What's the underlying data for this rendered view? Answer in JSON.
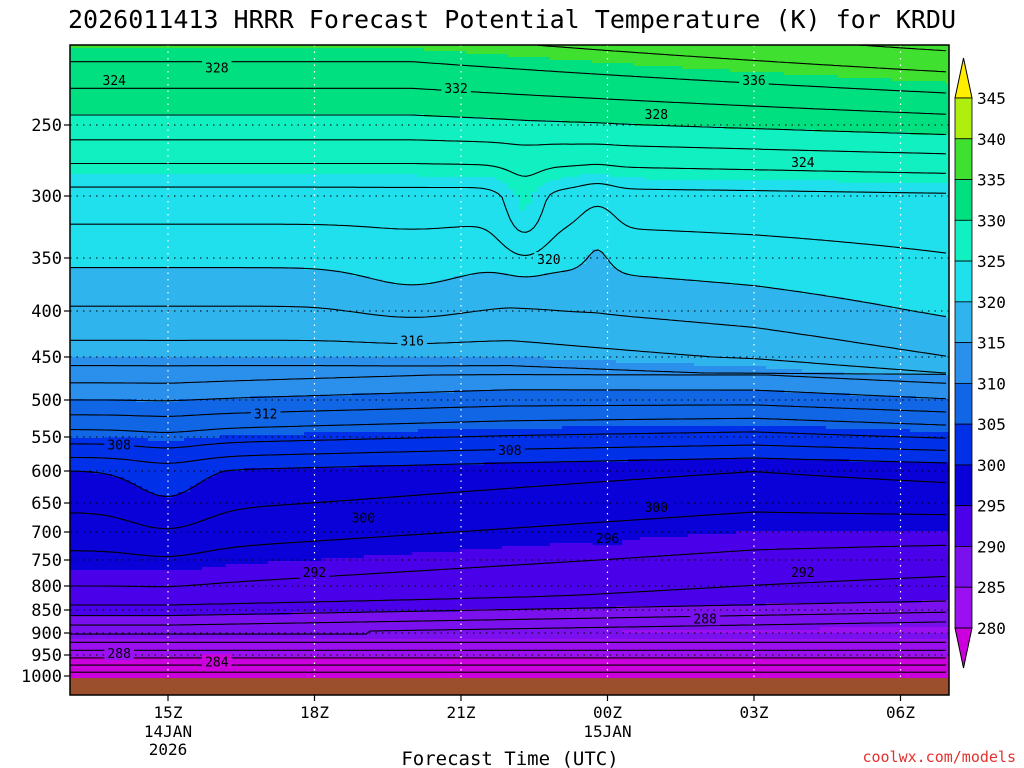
{
  "title": "2026011413 HRRR Forecast Potential Temperature (K) for KRDU",
  "credit": "coolwx.com/models",
  "chart_data": {
    "type": "contour",
    "title": "2026011413 HRRR Forecast Potential Temperature (K) for KRDU",
    "xlabel": "Forecast Time (UTC)",
    "ylabel": "",
    "x_ticks": [
      {
        "label": "15Z",
        "sub": [
          "14JAN",
          "2026"
        ],
        "hour": 15
      },
      {
        "label": "18Z",
        "sub": [],
        "hour": 18
      },
      {
        "label": "21Z",
        "sub": [],
        "hour": 21
      },
      {
        "label": "00Z",
        "sub": [
          "15JAN"
        ],
        "hour": 24
      },
      {
        "label": "03Z",
        "sub": [],
        "hour": 27
      },
      {
        "label": "06Z",
        "sub": [],
        "hour": 30
      }
    ],
    "x_range_hours": [
      13,
      31
    ],
    "y_unit": "hPa",
    "y_ticks": [
      250,
      300,
      350,
      400,
      450,
      500,
      550,
      600,
      650,
      700,
      750,
      800,
      850,
      900,
      950,
      1000
    ],
    "y_range_hPa": [
      200,
      1010
    ],
    "colorbar_ticks": [
      280,
      285,
      290,
      295,
      300,
      305,
      310,
      315,
      320,
      325,
      330,
      335,
      340,
      345
    ],
    "colorbar_colors": [
      "#cc00dd",
      "#9a10f0",
      "#7a10ee",
      "#4a00e8",
      "#0a00d8",
      "#0030e8",
      "#1066e4",
      "#2a90ec",
      "#30b4ee",
      "#20e0ee",
      "#10f0c0",
      "#00e080",
      "#40e030",
      "#b0ee10",
      "#ffee00"
    ],
    "contour_labels": [
      {
        "text": "328",
        "hour": 16.0,
        "hPa": 214
      },
      {
        "text": "324",
        "hour": 13.9,
        "hPa": 222
      },
      {
        "text": "332",
        "hour": 20.9,
        "hPa": 227
      },
      {
        "text": "336",
        "hour": 27.0,
        "hPa": 222
      },
      {
        "text": "328",
        "hour": 25.0,
        "hPa": 243
      },
      {
        "text": "324",
        "hour": 28.0,
        "hPa": 276
      },
      {
        "text": "320",
        "hour": 22.8,
        "hPa": 351
      },
      {
        "text": "316",
        "hour": 20.0,
        "hPa": 432
      },
      {
        "text": "312",
        "hour": 17.0,
        "hPa": 518
      },
      {
        "text": "308",
        "hour": 14.0,
        "hPa": 561
      },
      {
        "text": "308",
        "hour": 22.0,
        "hPa": 569
      },
      {
        "text": "300",
        "hour": 25.0,
        "hPa": 657
      },
      {
        "text": "300",
        "hour": 19.0,
        "hPa": 675
      },
      {
        "text": "296",
        "hour": 24.0,
        "hPa": 711
      },
      {
        "text": "292",
        "hour": 18.0,
        "hPa": 773
      },
      {
        "text": "292",
        "hour": 28.0,
        "hPa": 773
      },
      {
        "text": "288",
        "hour": 26.0,
        "hPa": 868
      },
      {
        "text": "288",
        "hour": 14.0,
        "hPa": 946
      },
      {
        "text": "284",
        "hour": 16.0,
        "hPa": 965
      }
    ]
  }
}
